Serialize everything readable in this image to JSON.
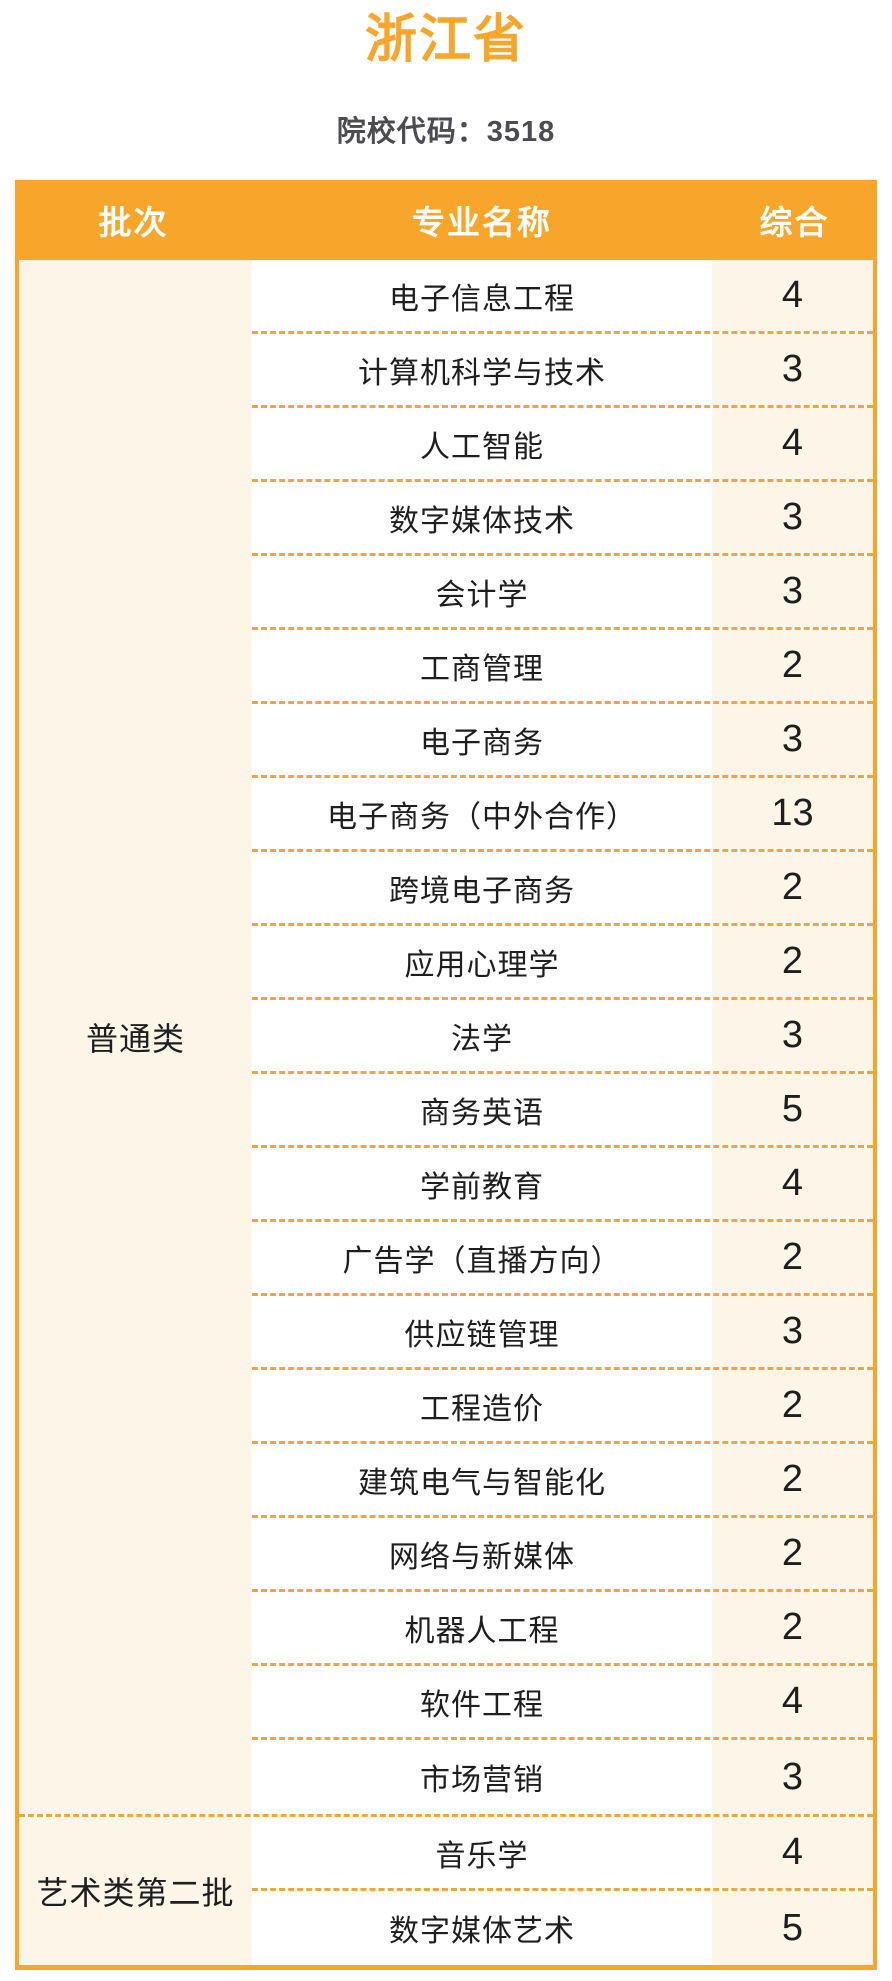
{
  "colors": {
    "accent_orange": "#F7A62B",
    "dashed_line_orange": "#F3A43C",
    "cream_cell_background": "#FDF6E8",
    "header_text": "#FFFFFF",
    "body_text": "#1E1E1E",
    "subtitle_text": "#4B4B51"
  },
  "header": {
    "title": "浙江省",
    "school_code_line": "院校代码：3518"
  },
  "table": {
    "headers": [
      "批次",
      "专业名称",
      "综合"
    ],
    "sections": [
      {
        "batch": "普通类",
        "rows": [
          {
            "major": "电子信息工程",
            "value": 4
          },
          {
            "major": "计算机科学与技术",
            "value": 3
          },
          {
            "major": "人工智能",
            "value": 4
          },
          {
            "major": "数字媒体技术",
            "value": 3
          },
          {
            "major": "会计学",
            "value": 3
          },
          {
            "major": "工商管理",
            "value": 2
          },
          {
            "major": "电子商务",
            "value": 3
          },
          {
            "major": "电子商务（中外合作）",
            "value": 13
          },
          {
            "major": "跨境电子商务",
            "value": 2
          },
          {
            "major": "应用心理学",
            "value": 2
          },
          {
            "major": "法学",
            "value": 3
          },
          {
            "major": "商务英语",
            "value": 5
          },
          {
            "major": "学前教育",
            "value": 4
          },
          {
            "major": "广告学（直播方向）",
            "value": 2
          },
          {
            "major": "供应链管理",
            "value": 3
          },
          {
            "major": "工程造价",
            "value": 2
          },
          {
            "major": "建筑电气与智能化",
            "value": 2
          },
          {
            "major": "网络与新媒体",
            "value": 2
          },
          {
            "major": "机器人工程",
            "value": 2
          },
          {
            "major": "软件工程",
            "value": 4
          },
          {
            "major": "市场营销",
            "value": 3
          }
        ]
      },
      {
        "batch": "艺术类第二批",
        "rows": [
          {
            "major": "音乐学",
            "value": 4
          },
          {
            "major": "数字媒体艺术",
            "value": 5
          }
        ]
      }
    ]
  },
  "chart_data": {
    "type": "table",
    "title": "浙江省",
    "subtitle": "院校代码：3518",
    "columns": [
      "批次",
      "专业名称",
      "综合"
    ],
    "rows": [
      [
        "普通类",
        "电子信息工程",
        4
      ],
      [
        "普通类",
        "计算机科学与技术",
        3
      ],
      [
        "普通类",
        "人工智能",
        4
      ],
      [
        "普通类",
        "数字媒体技术",
        3
      ],
      [
        "普通类",
        "会计学",
        3
      ],
      [
        "普通类",
        "工商管理",
        2
      ],
      [
        "普通类",
        "电子商务",
        3
      ],
      [
        "普通类",
        "电子商务（中外合作）",
        13
      ],
      [
        "普通类",
        "跨境电子商务",
        2
      ],
      [
        "普通类",
        "应用心理学",
        2
      ],
      [
        "普通类",
        "法学",
        3
      ],
      [
        "普通类",
        "商务英语",
        5
      ],
      [
        "普通类",
        "学前教育",
        4
      ],
      [
        "普通类",
        "广告学（直播方向）",
        2
      ],
      [
        "普通类",
        "供应链管理",
        3
      ],
      [
        "普通类",
        "工程造价",
        2
      ],
      [
        "普通类",
        "建筑电气与智能化",
        2
      ],
      [
        "普通类",
        "网络与新媒体",
        2
      ],
      [
        "普通类",
        "机器人工程",
        2
      ],
      [
        "普通类",
        "软件工程",
        4
      ],
      [
        "普通类",
        "市场营销",
        3
      ],
      [
        "艺术类第二批",
        "音乐学",
        4
      ],
      [
        "艺术类第二批",
        "数字媒体艺术",
        5
      ]
    ]
  }
}
